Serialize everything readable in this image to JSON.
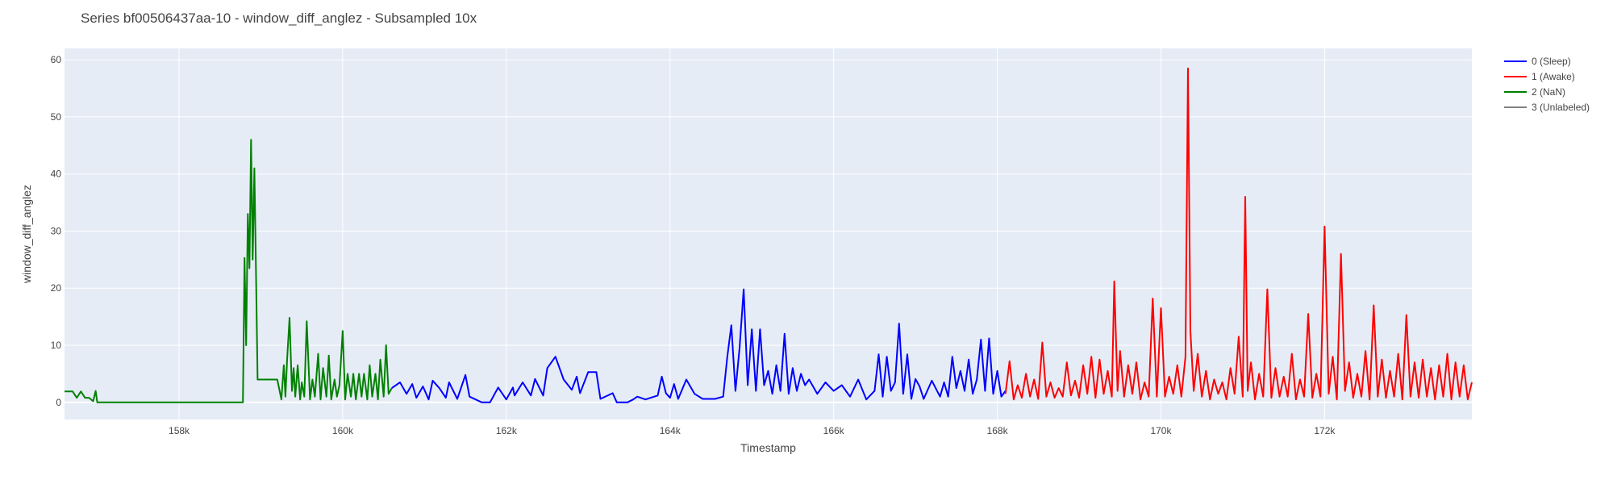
{
  "chart_data": {
    "type": "line",
    "title": "Series bf00506437aa-10 - window_diff_anglez - Subsampled 10x",
    "xlabel": "Timestamp",
    "ylabel": "window_diff_anglez",
    "xlim": [
      156600,
      173800
    ],
    "ylim": [
      -3,
      62
    ],
    "x_ticks": [
      158000,
      160000,
      162000,
      164000,
      166000,
      168000,
      170000,
      172000
    ],
    "x_tick_labels": [
      "158k",
      "160k",
      "162k",
      "164k",
      "166k",
      "168k",
      "170k",
      "172k"
    ],
    "y_ticks": [
      0,
      10,
      20,
      30,
      40,
      50,
      60
    ],
    "y_tick_labels": [
      "0",
      "10",
      "20",
      "30",
      "40",
      "50",
      "60"
    ],
    "grid": true,
    "legend_position": "top-right",
    "background": "#e5ecf6",
    "series": [
      {
        "name": "0 (Sleep)",
        "color": "#0000ff",
        "x": [
          160600,
          160700,
          160780,
          160850,
          160900,
          160980,
          161050,
          161100,
          161180,
          161260,
          161300,
          161400,
          161500,
          161550,
          161700,
          161800,
          161900,
          162000,
          162080,
          162100,
          162200,
          162300,
          162350,
          162450,
          162500,
          162600,
          162700,
          162800,
          162860,
          162900,
          163000,
          163100,
          163150,
          163300,
          163350,
          163400,
          163480,
          163550,
          163600,
          163700,
          163850,
          163900,
          163950,
          164000,
          164050,
          164100,
          164200,
          164300,
          164400,
          164500,
          164550,
          164650,
          164700,
          164750,
          164800,
          164850,
          164900,
          164950,
          165000,
          165050,
          165100,
          165150,
          165200,
          165250,
          165300,
          165350,
          165400,
          165450,
          165500,
          165550,
          165600,
          165650,
          165700,
          165800,
          165900,
          166000,
          166100,
          166200,
          166300,
          166400,
          166500,
          166550,
          166600,
          166650,
          166700,
          166750,
          166800,
          166850,
          166900,
          166950,
          167000,
          167050,
          167100,
          167200,
          167300,
          167350,
          167400,
          167450,
          167500,
          167550,
          167600,
          167650,
          167700,
          167750,
          167800,
          167850,
          167900,
          167950,
          168000,
          168050,
          168100
        ],
        "values": [
          2.5,
          3.5,
          1.5,
          3.2,
          0.8,
          2.8,
          0.5,
          3.8,
          2.5,
          0.8,
          3.5,
          0.6,
          4.8,
          1.0,
          0,
          0,
          2.6,
          0.5,
          2.6,
          1.2,
          3.5,
          1.2,
          4.1,
          1.2,
          6.0,
          8.0,
          4.0,
          2.2,
          4.5,
          1.6,
          5.3,
          5.3,
          0.6,
          1.6,
          0,
          0,
          0,
          0.5,
          1.0,
          0.5,
          1.2,
          4.5,
          1.6,
          0.8,
          3.2,
          0.6,
          4.0,
          1.5,
          0.6,
          0.6,
          0.6,
          1.0,
          8.0,
          13.5,
          2.0,
          9.5,
          19.8,
          3.0,
          12.8,
          2.0,
          12.8,
          3.0,
          5.5,
          1.5,
          6.5,
          2.0,
          12.0,
          1.5,
          6.0,
          2.0,
          5.0,
          3.0,
          4.0,
          1.5,
          3.5,
          2.0,
          3.0,
          1.0,
          4.0,
          0.5,
          2.0,
          8.4,
          1.0,
          8.0,
          2.0,
          3.5,
          13.8,
          1.5,
          8.4,
          0.6,
          4.1,
          2.8,
          0.6,
          3.8,
          1.0,
          3.5,
          1.0,
          8.0,
          2.5,
          5.5,
          2.0,
          7.5,
          1.5,
          4.0,
          11.0,
          2.0,
          11.2,
          1.5,
          5.5,
          1.0,
          2.0
        ]
      },
      {
        "name": "1 (Awake)",
        "color": "#ff0000",
        "x": [
          168100,
          168150,
          168200,
          168250,
          168300,
          168350,
          168400,
          168450,
          168500,
          168550,
          168600,
          168650,
          168700,
          168750,
          168800,
          168850,
          168900,
          168950,
          169000,
          169050,
          169100,
          169150,
          169200,
          169250,
          169300,
          169350,
          169400,
          169430,
          169470,
          169500,
          169550,
          169600,
          169650,
          169700,
          169750,
          169800,
          169850,
          169900,
          169950,
          170000,
          170050,
          170100,
          170150,
          170200,
          170250,
          170300,
          170330,
          170360,
          170400,
          170450,
          170500,
          170550,
          170600,
          170650,
          170700,
          170750,
          170800,
          170850,
          170900,
          170950,
          171000,
          171030,
          171060,
          171100,
          171150,
          171200,
          171250,
          171300,
          171350,
          171400,
          171450,
          171500,
          171550,
          171600,
          171650,
          171700,
          171750,
          171800,
          171850,
          171900,
          171950,
          172000,
          172050,
          172100,
          172150,
          172200,
          172250,
          172300,
          172350,
          172400,
          172450,
          172500,
          172550,
          172600,
          172650,
          172700,
          172750,
          172800,
          172850,
          172900,
          172950,
          173000,
          173050,
          173100,
          173150,
          173200,
          173250,
          173300,
          173350,
          173400,
          173450,
          173500,
          173550,
          173600,
          173650,
          173700,
          173750,
          173800
        ],
        "values": [
          1.5,
          7.2,
          0.5,
          3.0,
          0.8,
          5.0,
          1.0,
          4.0,
          0.6,
          10.5,
          1.0,
          3.5,
          0.8,
          2.5,
          1.0,
          7.0,
          1.2,
          3.8,
          0.8,
          6.5,
          1.5,
          8.0,
          0.8,
          7.5,
          1.5,
          5.5,
          1.0,
          21.2,
          2.0,
          9.0,
          1.0,
          6.5,
          1.5,
          7.0,
          0.5,
          3.5,
          1.0,
          18.2,
          1.0,
          16.5,
          1.0,
          4.5,
          1.5,
          6.5,
          1.0,
          8.0,
          58.5,
          12.5,
          2.0,
          8.5,
          1.0,
          5.5,
          0.5,
          4.0,
          1.5,
          3.5,
          0.5,
          6.0,
          1.5,
          11.5,
          1.0,
          36.0,
          2.0,
          7.0,
          0.5,
          5.0,
          1.0,
          19.8,
          0.8,
          6.0,
          1.0,
          4.5,
          1.0,
          8.5,
          0.5,
          4.0,
          1.0,
          15.5,
          0.8,
          5.0,
          1.0,
          30.8,
          1.5,
          8.0,
          0.5,
          26.0,
          2.0,
          7.0,
          0.8,
          5.0,
          1.0,
          9.0,
          0.5,
          17.0,
          1.0,
          7.5,
          0.8,
          5.5,
          1.0,
          8.5,
          0.5,
          15.3,
          1.0,
          7.0,
          0.8,
          7.5,
          1.0,
          6.0,
          0.5,
          6.5,
          1.0,
          8.5,
          0.5,
          7.0,
          1.0,
          6.5,
          0.5,
          3.5
        ]
      },
      {
        "name": "2 (NaN)",
        "color": "#008000",
        "x": [
          156600,
          156700,
          156750,
          156800,
          156850,
          156900,
          156950,
          156980,
          157000,
          157050,
          157500,
          158000,
          158500,
          158780,
          158800,
          158820,
          158840,
          158860,
          158880,
          158900,
          158920,
          158940,
          158960,
          159000,
          159100,
          159200,
          159250,
          159280,
          159300,
          159320,
          159350,
          159380,
          159400,
          159420,
          159450,
          159480,
          159500,
          159530,
          159560,
          159600,
          159630,
          159660,
          159700,
          159730,
          159760,
          159800,
          159830,
          159860,
          159900,
          159930,
          159960,
          160000,
          160030,
          160060,
          160100,
          160130,
          160160,
          160200,
          160230,
          160260,
          160300,
          160330,
          160360,
          160400,
          160430,
          160460,
          160500,
          160530,
          160560,
          160600
        ],
        "values": [
          1.9,
          1.9,
          0.8,
          1.9,
          0.8,
          0.8,
          0.2,
          2.0,
          0,
          0,
          0,
          0,
          0,
          0,
          25.3,
          10.0,
          33.0,
          23.5,
          46.0,
          25.0,
          41.0,
          23.0,
          4.0,
          4.0,
          4.0,
          4.0,
          0.5,
          6.5,
          1.0,
          7.5,
          14.8,
          2.0,
          6.0,
          1.0,
          6.5,
          0.5,
          3.5,
          1.0,
          14.2,
          0.5,
          4.0,
          1.0,
          8.5,
          0.5,
          6.0,
          1.0,
          8.2,
          0.5,
          4.0,
          1.0,
          3.0,
          12.5,
          0.5,
          5.0,
          1.0,
          5.0,
          0.5,
          5.0,
          1.0,
          5.0,
          0.5,
          6.5,
          1.0,
          5.0,
          0.5,
          7.5,
          1.0,
          10.0,
          1.5,
          2.5
        ]
      },
      {
        "name": "3 (Unlabeled)",
        "color": "#808080",
        "x": [],
        "values": []
      }
    ]
  }
}
